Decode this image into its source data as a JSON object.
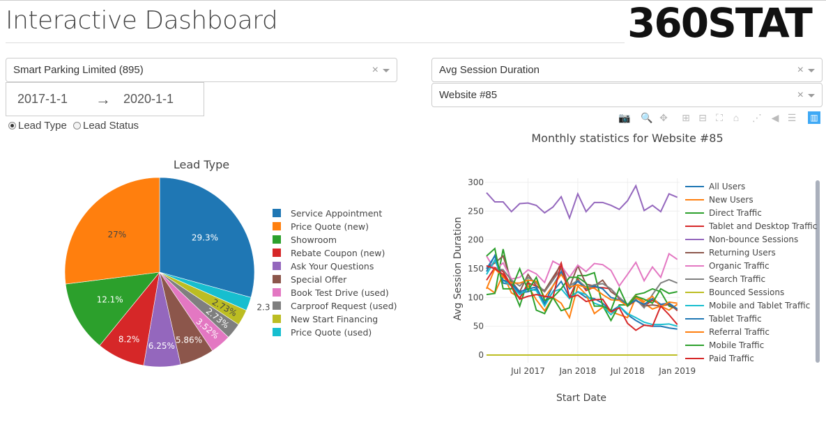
{
  "header": {
    "title": "Interactive Dashboard",
    "logo": "360STAT"
  },
  "filters": {
    "company": {
      "value": "Smart Parking Limited (895)",
      "clear": "×"
    },
    "date_range": {
      "start": "2017-1-1",
      "arrow": "→",
      "end": "2020-1-1"
    },
    "radio": [
      {
        "label": "Lead Type",
        "checked": true
      },
      {
        "label": "Lead Status",
        "checked": false
      }
    ],
    "metric": {
      "value": "Avg Session Duration",
      "clear": "×"
    },
    "website": {
      "value": "Website #85",
      "clear": "×"
    }
  },
  "toolbar": [
    {
      "icon": "camera-icon"
    },
    {
      "icon": "zoom-icon",
      "active": true
    },
    {
      "icon": "pan-icon"
    },
    {
      "icon": "zoom-in-icon"
    },
    {
      "icon": "zoom-out-icon"
    },
    {
      "icon": "autoscale-icon"
    },
    {
      "icon": "reset-axes-icon"
    },
    {
      "icon": "spike-lines-icon"
    },
    {
      "icon": "hover-closest-icon"
    },
    {
      "icon": "hover-compare-icon"
    },
    {
      "icon": "plotly-logo-icon"
    }
  ],
  "chart_data": [
    {
      "type": "pie",
      "title": "Lead Type",
      "legend_placement": "right",
      "labels": [
        "Service Appointment",
        "Price Quote (new)",
        "Showroom",
        "Rebate Coupon (new)",
        "Ask Your Questions",
        "Special Offer",
        "Book Test Drive (used)",
        "Carproof Request (used)",
        "New Start Financing",
        "Price Quote (used)"
      ],
      "values": [
        29.3,
        27,
        12.1,
        8.2,
        6.25,
        5.86,
        3.52,
        2.73,
        2.73,
        2.3
      ],
      "text_labels": [
        "29.3%",
        "27%",
        "12.1%",
        "8.2%",
        "6.25%",
        "5.86%",
        "3.52%",
        "2.73%",
        "2.73%",
        "2.3"
      ],
      "colors": [
        "#1f77b4",
        "#ff7f0e",
        "#2ca02c",
        "#d62728",
        "#9467bd",
        "#8c564b",
        "#e377c2",
        "#7f7f7f",
        "#bcbd22",
        "#17becf"
      ]
    },
    {
      "type": "line",
      "title": "Monthly statistics for Website #85",
      "xlabel": "Start Date",
      "ylabel": "Avg Session Duration",
      "x_range": [
        "2017-02",
        "2019-01"
      ],
      "ylim": [
        -10,
        310
      ],
      "yticks": [
        0,
        50,
        100,
        150,
        200,
        250,
        300
      ],
      "xticks": [
        "Jul 2017",
        "Jan 2018",
        "Jul 2018",
        "Jan 2019"
      ],
      "xtick_months": [
        "2017-07",
        "2018-01",
        "2018-07",
        "2019-01"
      ],
      "grid": true,
      "legend_placement": "right",
      "x": [
        "2017-02",
        "2017-03",
        "2017-04",
        "2017-05",
        "2017-06",
        "2017-07",
        "2017-08",
        "2017-09",
        "2017-10",
        "2017-11",
        "2017-12",
        "2018-01",
        "2018-02",
        "2018-03",
        "2018-04",
        "2018-05",
        "2018-06",
        "2018-07",
        "2018-08",
        "2018-09",
        "2018-10",
        "2018-11",
        "2018-12",
        "2019-01"
      ],
      "series": [
        {
          "name": "All Users",
          "color": "#1f77b4",
          "values": [
            145,
            173,
            125,
            122,
            108,
            110,
            115,
            88,
            110,
            128,
            100,
            110,
            100,
            98,
            90,
            76,
            85,
            70,
            60,
            52,
            50,
            50,
            47,
            45
          ]
        },
        {
          "name": "New Users",
          "color": "#ff7f0e",
          "values": [
            118,
            108,
            140,
            108,
            100,
            120,
            96,
            77,
            100,
            90,
            65,
            120,
            105,
            72,
            83,
            75,
            70,
            65,
            100,
            90,
            80,
            85,
            78,
            88
          ]
        },
        {
          "name": "Direct Traffic",
          "color": "#2ca02c",
          "values": [
            105,
            107,
            184,
            120,
            85,
            130,
            78,
            72,
            100,
            77,
            82,
            138,
            138,
            143,
            86,
            60,
            87,
            87,
            105,
            108,
            115,
            110,
            85,
            80
          ]
        },
        {
          "name": "Tablet and Desktop Traffic",
          "color": "#d62728",
          "values": [
            130,
            152,
            145,
            120,
            98,
            125,
            120,
            110,
            130,
            160,
            100,
            132,
            112,
            118,
            117,
            115,
            98,
            85,
            95,
            85,
            95,
            88,
            90,
            77
          ]
        },
        {
          "name": "Non-bounce Sessions",
          "color": "#9467bd",
          "values": [
            282,
            266,
            266,
            249,
            263,
            264,
            260,
            247,
            257,
            275,
            238,
            280,
            249,
            265,
            265,
            260,
            253,
            268,
            294,
            251,
            260,
            249,
            280,
            274
          ]
        },
        {
          "name": "Returning Users",
          "color": "#8c564b",
          "values": [
            150,
            160,
            172,
            128,
            110,
            140,
            120,
            112,
            135,
            157,
            118,
            155,
            123,
            120,
            130,
            110,
            100,
            85,
            95,
            85,
            87,
            85,
            88,
            78
          ]
        },
        {
          "name": "Organic Traffic",
          "color": "#e377c2",
          "values": [
            172,
            148,
            160,
            132,
            135,
            148,
            141,
            126,
            163,
            155,
            135,
            156,
            145,
            159,
            157,
            147,
            120,
            140,
            161,
            129,
            153,
            135,
            176,
            166
          ]
        },
        {
          "name": "Search Traffic",
          "color": "#7f7f7f",
          "values": [
            155,
            150,
            148,
            130,
            120,
            135,
            125,
            110,
            130,
            150,
            120,
            130,
            118,
            122,
            124,
            115,
            100,
            88,
            97,
            82,
            105,
            125,
            131,
            125
          ]
        },
        {
          "name": "Bounced Sessions",
          "color": "#bcbd22",
          "values": [
            0,
            0,
            0,
            0,
            0,
            0,
            0,
            0,
            0,
            0,
            0,
            0,
            0,
            0,
            0,
            0,
            0,
            0,
            0,
            0,
            0,
            0,
            0,
            0
          ]
        },
        {
          "name": "Mobile and Tablet Traffic",
          "color": "#17becf",
          "values": [
            140,
            165,
            130,
            120,
            105,
            115,
            112,
            85,
            110,
            115,
            98,
            110,
            105,
            90,
            85,
            70,
            85,
            72,
            65,
            57,
            53,
            53,
            54,
            50
          ]
        },
        {
          "name": "Tablet Traffic",
          "color": "#1f77b4",
          "values": [
            150,
            172,
            130,
            125,
            110,
            115,
            118,
            90,
            120,
            145,
            115,
            128,
            115,
            120,
            115,
            100,
            96,
            88,
            95,
            88,
            98,
            88,
            90,
            80
          ]
        },
        {
          "name": "Referral Traffic",
          "color": "#ff7f0e",
          "values": [
            115,
            150,
            135,
            125,
            125,
            130,
            128,
            100,
            120,
            140,
            118,
            122,
            117,
            116,
            105,
            96,
            95,
            85,
            103,
            93,
            102,
            83,
            92,
            90
          ]
        },
        {
          "name": "Mobile Traffic",
          "color": "#2ca02c",
          "values": [
            172,
            185,
            115,
            115,
            150,
            112,
            135,
            95,
            100,
            115,
            135,
            135,
            125,
            85,
            85,
            78,
            116,
            85,
            102,
            97,
            90,
            115,
            107,
            110
          ]
        },
        {
          "name": "Paid Traffic",
          "color": "#d62728",
          "values": [
            155,
            150,
            140,
            120,
            97,
            102,
            105,
            102,
            100,
            158,
            100,
            104,
            93,
            96,
            97,
            75,
            82,
            55,
            43,
            52,
            50,
            85,
            70,
            53
          ]
        }
      ]
    }
  ]
}
